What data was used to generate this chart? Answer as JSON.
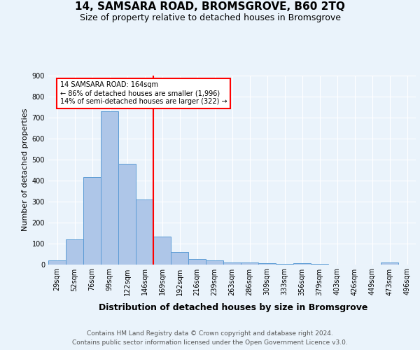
{
  "title": "14, SAMSARA ROAD, BROMSGROVE, B60 2TQ",
  "subtitle": "Size of property relative to detached houses in Bromsgrove",
  "xlabel": "Distribution of detached houses by size in Bromsgrove",
  "ylabel": "Number of detached properties",
  "categories": [
    "29sqm",
    "52sqm",
    "76sqm",
    "99sqm",
    "122sqm",
    "146sqm",
    "169sqm",
    "192sqm",
    "216sqm",
    "239sqm",
    "263sqm",
    "286sqm",
    "309sqm",
    "333sqm",
    "356sqm",
    "379sqm",
    "403sqm",
    "426sqm",
    "449sqm",
    "473sqm",
    "496sqm"
  ],
  "values": [
    20,
    120,
    415,
    730,
    480,
    310,
    132,
    60,
    25,
    20,
    10,
    8,
    5,
    2,
    5,
    2,
    0,
    0,
    0,
    8,
    0
  ],
  "bar_color": "#aec6e8",
  "bar_edge_color": "#5b9bd5",
  "vline_index": 6,
  "subject_label": "14 SAMSARA ROAD: 164sqm",
  "annotation_line1": "← 86% of detached houses are smaller (1,996)",
  "annotation_line2": "14% of semi-detached houses are larger (322) →",
  "vline_color": "red",
  "ylim": [
    0,
    900
  ],
  "yticks": [
    0,
    100,
    200,
    300,
    400,
    500,
    600,
    700,
    800,
    900
  ],
  "footer_line1": "Contains HM Land Registry data © Crown copyright and database right 2024.",
  "footer_line2": "Contains public sector information licensed under the Open Government Licence v3.0.",
  "bg_color": "#eaf3fb",
  "title_fontsize": 11,
  "subtitle_fontsize": 9,
  "ylabel_fontsize": 8,
  "xlabel_fontsize": 9,
  "tick_fontsize": 7,
  "annot_fontsize": 7,
  "footer_fontsize": 6.5
}
